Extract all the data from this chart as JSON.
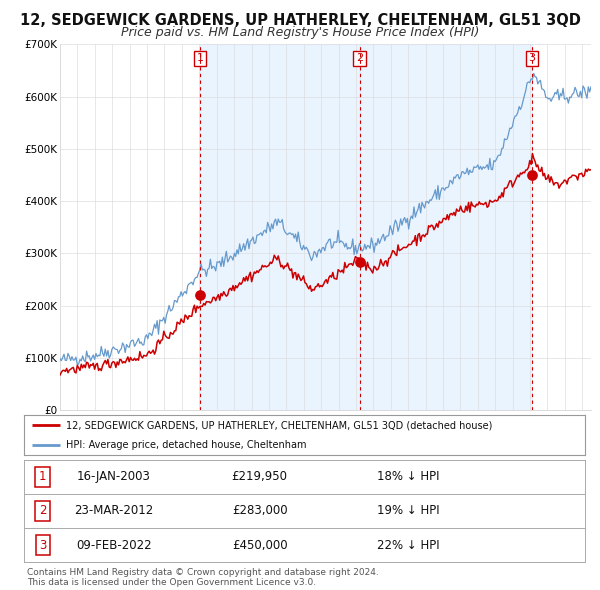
{
  "title": "12, SEDGEWICK GARDENS, UP HATHERLEY, CHELTENHAM, GL51 3QD",
  "subtitle": "Price paid vs. HM Land Registry's House Price Index (HPI)",
  "ylim": [
    0,
    700000
  ],
  "yticks": [
    0,
    100000,
    200000,
    300000,
    400000,
    500000,
    600000,
    700000
  ],
  "ytick_labels": [
    "£0",
    "£100K",
    "£200K",
    "£300K",
    "£400K",
    "£500K",
    "£600K",
    "£700K"
  ],
  "xlim_start": 1995.0,
  "xlim_end": 2025.5,
  "xtick_years": [
    1995,
    1996,
    1997,
    1998,
    1999,
    2000,
    2001,
    2002,
    2003,
    2004,
    2005,
    2006,
    2007,
    2008,
    2009,
    2010,
    2011,
    2012,
    2013,
    2014,
    2015,
    2016,
    2017,
    2018,
    2019,
    2020,
    2021,
    2022,
    2023,
    2024,
    2025
  ],
  "sale_color": "#cc0000",
  "hpi_color": "#6699cc",
  "hpi_fill_color": "#ddeeff",
  "shade_color": "#ddeeff",
  "plot_bg": "#ffffff",
  "grid_color": "#dddddd",
  "sale_points": [
    {
      "year": 2003.04,
      "value": 219950,
      "label": "1"
    },
    {
      "year": 2012.22,
      "value": 283000,
      "label": "2"
    },
    {
      "year": 2022.11,
      "value": 450000,
      "label": "3"
    }
  ],
  "vline_color": "#cc0000",
  "legend_sale_label": "12, SEDGEWICK GARDENS, UP HATHERLEY, CHELTENHAM, GL51 3QD (detached house)",
  "legend_hpi_label": "HPI: Average price, detached house, Cheltenham",
  "table_rows": [
    {
      "num": "1",
      "date": "16-JAN-2003",
      "price": "£219,950",
      "pct": "18% ↓ HPI"
    },
    {
      "num": "2",
      "date": "23-MAR-2012",
      "price": "£283,000",
      "pct": "19% ↓ HPI"
    },
    {
      "num": "3",
      "date": "09-FEB-2022",
      "price": "£450,000",
      "pct": "22% ↓ HPI"
    }
  ],
  "footer": "Contains HM Land Registry data © Crown copyright and database right 2024.\nThis data is licensed under the Open Government Licence v3.0.",
  "title_fontsize": 10.5,
  "subtitle_fontsize": 9,
  "tick_fontsize": 7.5,
  "legend_fontsize": 8,
  "table_fontsize": 8.5,
  "footer_fontsize": 6.5
}
